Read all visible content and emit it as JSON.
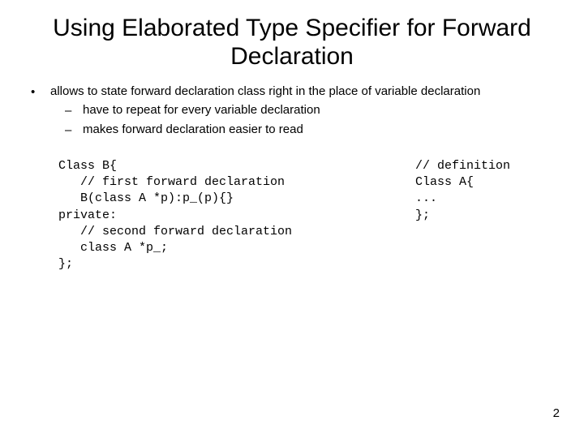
{
  "title": "Using Elaborated Type Specifier for Forward Declaration",
  "bullets": {
    "main": "allows to state forward declaration class right in the place of variable declaration",
    "sub1": "have to repeat for every variable declaration",
    "sub2": "makes forward declaration easier to read"
  },
  "code": {
    "left": "Class B{\n   // first forward declaration\n   B(class A *p):p_(p){}\nprivate:\n   // second forward declaration\n   class A *p_;\n};",
    "right": "// definition\nClass A{\n...\n};"
  },
  "pageNumber": "2",
  "symbols": {
    "dot": "•",
    "dash": "–"
  }
}
